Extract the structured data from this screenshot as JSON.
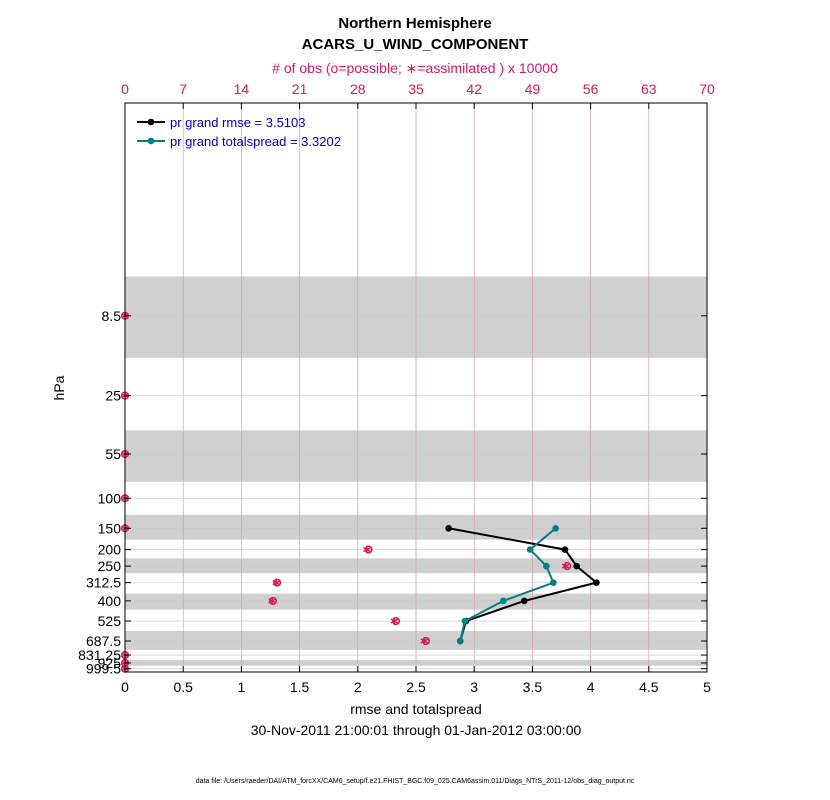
{
  "chart_data": {
    "type": "line",
    "title": "Northern Hemisphere",
    "subtitle": "ACARS_U_WIND_COMPONENT",
    "top_axis_label": "# of obs (o=possible; ∗=assimilated ) x 10000",
    "xlabel": "rmse and totalspread",
    "ylabel": "hPa",
    "date_range": "30-Nov-2011 21:00:01 through 01-Jan-2012 03:00:00",
    "footer": "data file: /Users/raeder/DAI/ATM_forcXX/CAM6_setup/f.e21.FHIST_BGC.f09_025.CAM6assim.011/Diags_NTrS_2011-12/obs_diag_output.nc",
    "xlim": [
      0,
      5
    ],
    "x_ticks": [
      "0",
      "0.5",
      "1",
      "1.5",
      "2",
      "2.5",
      "3",
      "3.5",
      "4",
      "4.5",
      "5"
    ],
    "top_xlim": [
      0,
      70
    ],
    "top_ticks": [
      "0",
      "7",
      "14",
      "21",
      "28",
      "35",
      "42",
      "49",
      "56",
      "63",
      "70"
    ],
    "y_levels": [
      8.5,
      25,
      55,
      100,
      150,
      200,
      250,
      312.5,
      400,
      525,
      687.5,
      831.25,
      925,
      999.5
    ],
    "y_tick_labels": [
      "8.5",
      "25",
      "55",
      "100",
      "150",
      "200",
      "250",
      "312.5",
      "400",
      "525",
      "687.5",
      "831.25",
      "925",
      "999.5"
    ],
    "y_scale": "log",
    "ylim": [
      0.48,
      1045
    ],
    "y_inverted": true,
    "grid": true,
    "legend_position": "top-left",
    "band_boundaries": [
      5,
      15,
      40,
      80,
      125,
      175,
      225,
      275,
      362.5,
      450,
      600,
      775,
      887.5,
      962.5,
      1037.5
    ],
    "series": [
      {
        "name": "pr grand rmse = 3.5103",
        "color": "#000000",
        "points": [
          [
            2.78,
            150
          ],
          [
            3.78,
            200
          ],
          [
            3.88,
            250
          ],
          [
            4.05,
            312.5
          ],
          [
            3.43,
            400
          ],
          [
            2.93,
            525
          ],
          [
            2.88,
            687.5
          ]
        ]
      },
      {
        "name": "pr grand totalspread = 3.3202",
        "color": "#008080",
        "points": [
          [
            3.7,
            150
          ],
          [
            3.48,
            200
          ],
          [
            3.62,
            250
          ],
          [
            3.68,
            312.5
          ],
          [
            3.25,
            400
          ],
          [
            2.92,
            525
          ],
          [
            2.88,
            687.5
          ]
        ]
      }
    ],
    "obs_counts": {
      "color": "#d81b60",
      "points": [
        {
          "level": 8.5,
          "possible": 0,
          "assimilated": 0
        },
        {
          "level": 25,
          "possible": 0,
          "assimilated": 0
        },
        {
          "level": 55,
          "possible": 0,
          "assimilated": 0
        },
        {
          "level": 100,
          "possible": 0,
          "assimilated": 0
        },
        {
          "level": 150,
          "possible": 0,
          "assimilated": 0
        },
        {
          "level": 200,
          "possible": 29.3,
          "assimilated": 29.1
        },
        {
          "level": 250,
          "possible": 53.2,
          "assimilated": 53.0
        },
        {
          "level": 312.5,
          "possible": 18.3,
          "assimilated": 18.2
        },
        {
          "level": 400,
          "possible": 17.8,
          "assimilated": 17.7
        },
        {
          "level": 525,
          "possible": 32.6,
          "assimilated": 32.4
        },
        {
          "level": 687.5,
          "possible": 36.2,
          "assimilated": 36.0
        },
        {
          "level": 831.25,
          "possible": 0,
          "assimilated": 0
        },
        {
          "level": 925,
          "possible": 0,
          "assimilated": 0
        },
        {
          "level": 999.5,
          "possible": 0,
          "assimilated": 0
        }
      ]
    }
  }
}
